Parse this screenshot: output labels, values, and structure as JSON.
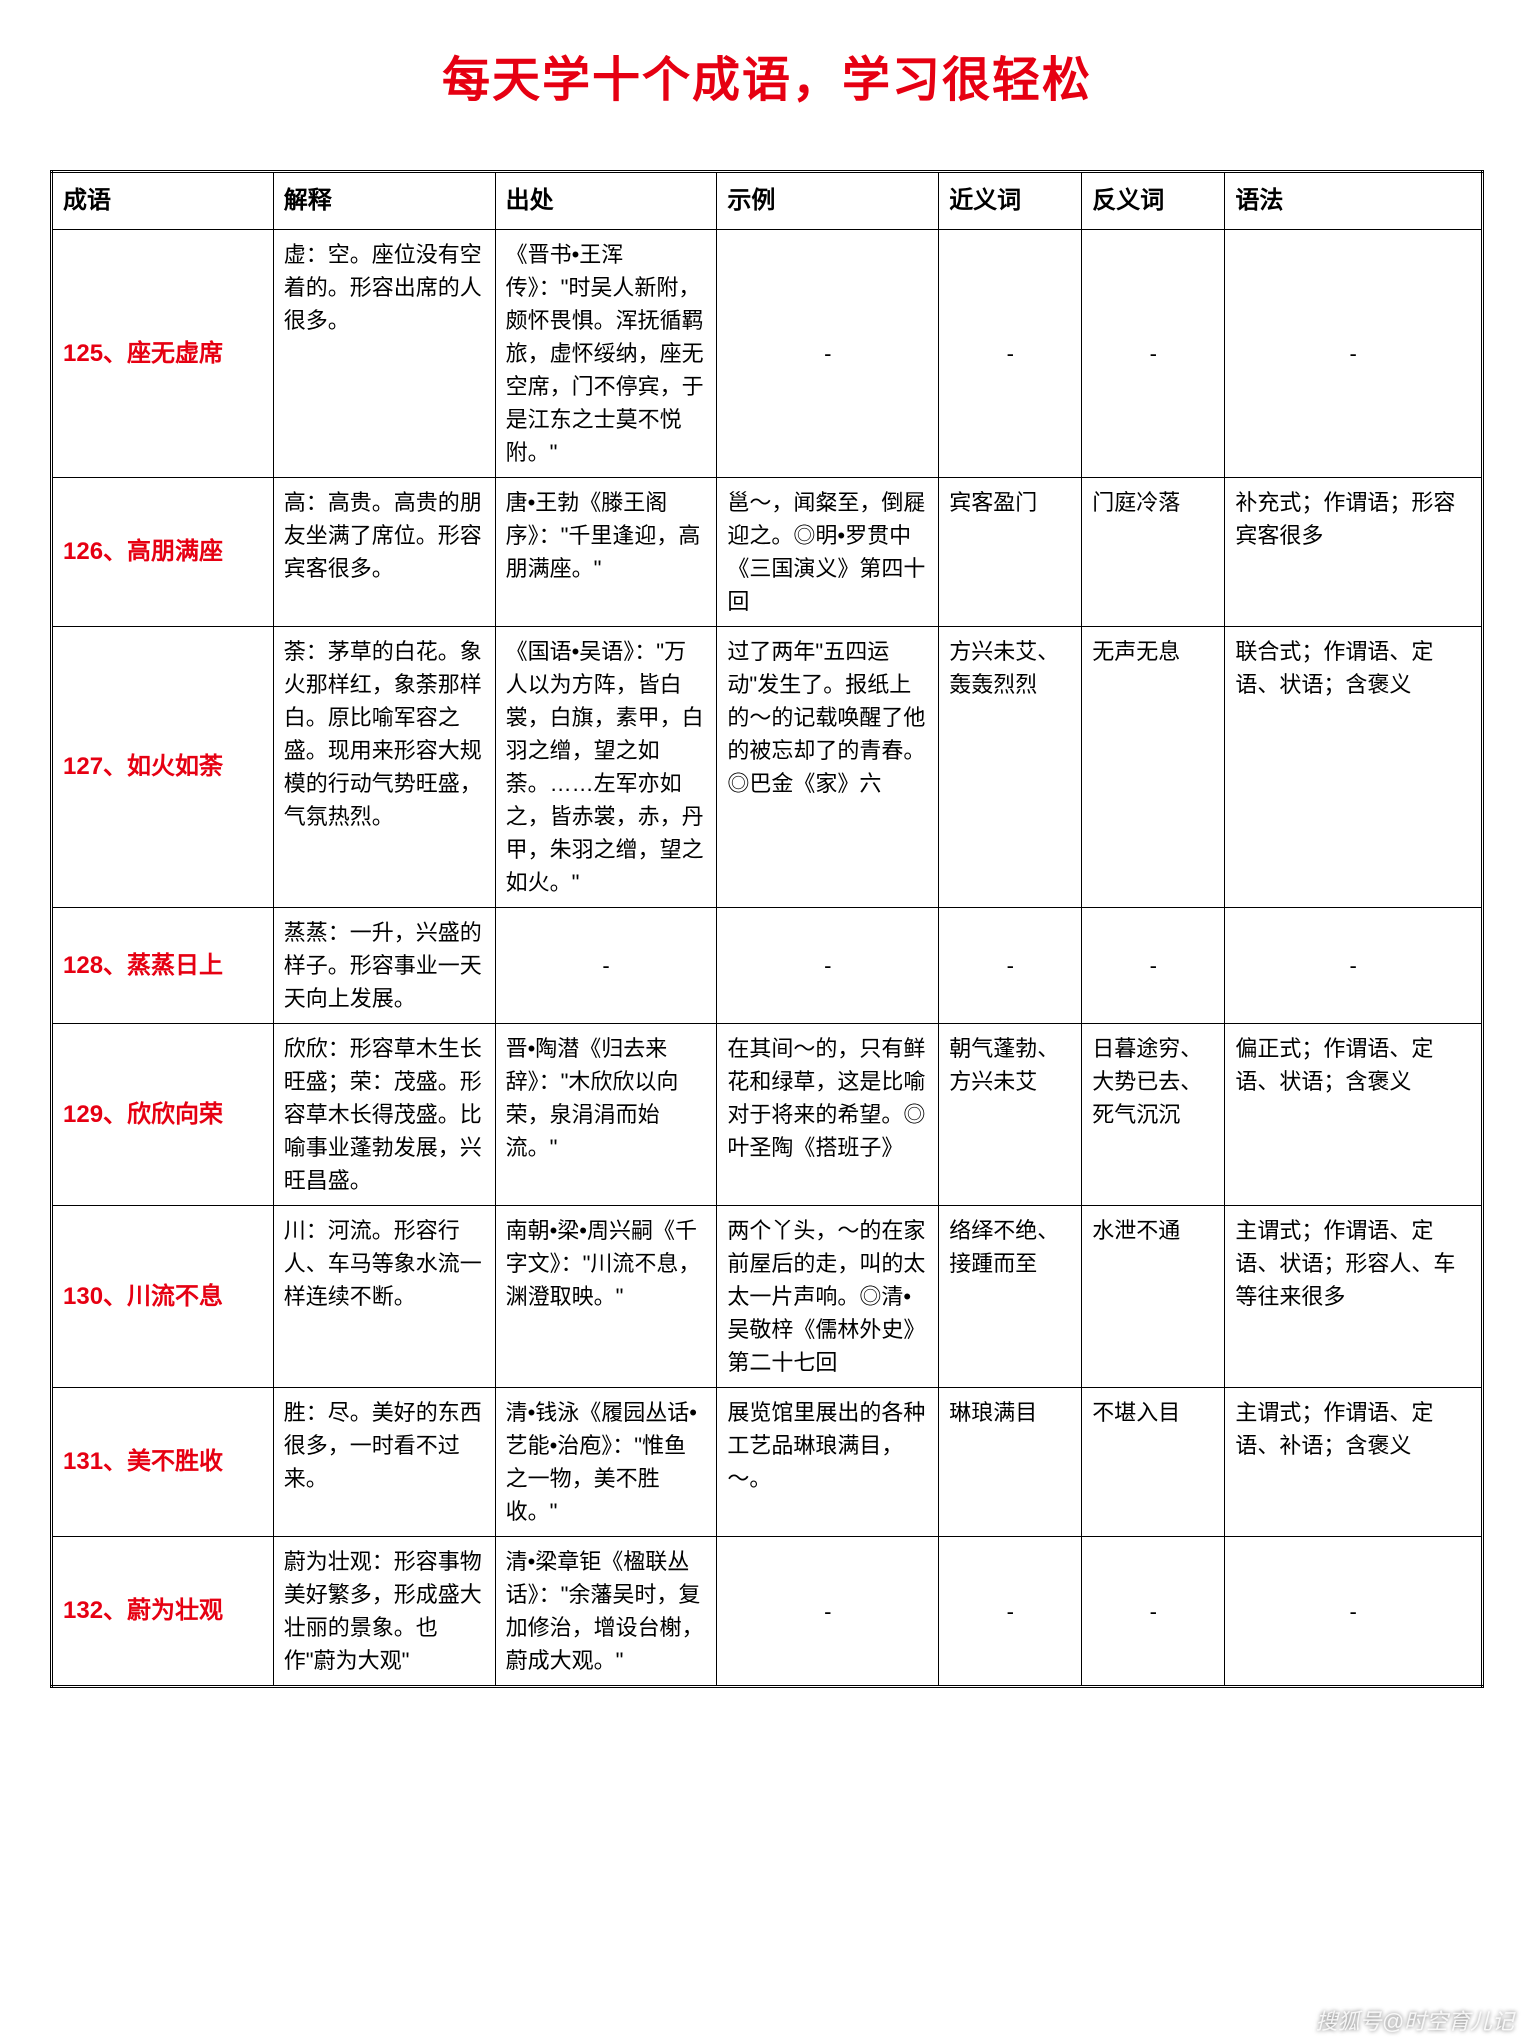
{
  "title": "每天学十个成语，学习很轻松",
  "watermark": "搜狐号@时空育儿记",
  "columns": [
    "成语",
    "解释",
    "出处",
    "示例",
    "近义词",
    "反义词",
    "语法"
  ],
  "styling": {
    "title_color": "#e60012",
    "title_fontsize": 48,
    "idiom_color": "#e60012",
    "body_fontsize": 22,
    "header_fontsize": 24,
    "border_color": "#000000",
    "background_color": "#ffffff",
    "col_widths_pct": [
      15.5,
      15.5,
      15.5,
      15.5,
      10,
      10,
      18
    ]
  },
  "rows": [
    {
      "idiom": "125、座无虚席",
      "explain": "虚：空。座位没有空着的。形容出席的人很多。",
      "source": "《晋书•王浑传》：\"时吴人新附，颇怀畏惧。浑抚循羁旅，虚怀绥纳，座无空席，门不停宾，于是江东之士莫不悦附。\"",
      "example": "-",
      "syn": "-",
      "ant": "-",
      "grammar": "-"
    },
    {
      "idiom": "126、高朋满座",
      "explain": "高：高贵。高贵的朋友坐满了席位。形容宾客很多。",
      "source": "唐•王勃《滕王阁序》：\"千里逢迎，高朋满座。\"",
      "example": "邕～，闻粲至，倒屣迎之。◎明•罗贯中《三国演义》第四十回",
      "syn": "宾客盈门",
      "ant": "门庭冷落",
      "grammar": "补充式；作谓语；形容宾客很多"
    },
    {
      "idiom": "127、如火如荼",
      "explain": "荼：茅草的白花。象火那样红，象荼那样白。原比喻军容之盛。现用来形容大规模的行动气势旺盛，气氛热烈。",
      "source": "《国语•吴语》：\"万人以为方阵，皆白裳，白旗，素甲，白羽之缯，望之如荼。……左军亦如之，皆赤裳，赤，丹甲，朱羽之缯，望之如火。\"",
      "example": "过了两年\"五四运动\"发生了。报纸上的～的记载唤醒了他的被忘却了的青春。◎巴金《家》六",
      "syn": "方兴未艾、轰轰烈烈",
      "ant": "无声无息",
      "grammar": "联合式；作谓语、定语、状语；含褒义"
    },
    {
      "idiom": "128、蒸蒸日上",
      "explain": "蒸蒸：一升，兴盛的样子。形容事业一天天向上发展。",
      "source": "-",
      "example": "-",
      "syn": "-",
      "ant": "-",
      "grammar": "-"
    },
    {
      "idiom": "129、欣欣向荣",
      "explain": "欣欣：形容草木生长旺盛；荣：茂盛。形容草木长得茂盛。比喻事业蓬勃发展，兴旺昌盛。",
      "source": "晋•陶潜《归去来辞》：\"木欣欣以向荣，泉涓涓而始流。\"",
      "example": "在其间～的，只有鲜花和绿草，这是比喻对于将来的希望。◎叶圣陶《搭班子》",
      "syn": "朝气蓬勃、方兴未艾",
      "ant": "日暮途穷、大势已去、死气沉沉",
      "grammar": "偏正式；作谓语、定语、状语；含褒义"
    },
    {
      "idiom": "130、川流不息",
      "explain": "川：河流。形容行人、车马等象水流一样连续不断。",
      "source": "南朝•梁•周兴嗣《千字文》：\"川流不息，渊澄取映。\"",
      "example": "两个丫头，～的在家前屋后的走，叫的太太一片声响。◎清•吴敬梓《儒林外史》第二十七回",
      "syn": "络绎不绝、接踵而至",
      "ant": "水泄不通",
      "grammar": "主谓式；作谓语、定语、状语；形容人、车等往来很多"
    },
    {
      "idiom": "131、美不胜收",
      "explain": "胜：尽。美好的东西很多，一时看不过来。",
      "source": "清•钱泳《履园丛话•艺能•治庖》：\"惟鱼之一物，美不胜收。\"",
      "example": "展览馆里展出的各种工艺品琳琅满目，～。",
      "syn": "琳琅满目",
      "ant": "不堪入目",
      "grammar": "主谓式；作谓语、定语、补语；含褒义"
    },
    {
      "idiom": "132、蔚为壮观",
      "explain": "蔚为壮观：形容事物美好繁多，形成盛大壮丽的景象。也作\"蔚为大观\"",
      "source": "清•梁章钜《楹联丛话》：\"余藩吴时，复加修治，增设台榭，蔚成大观。\"",
      "example": "-",
      "syn": "-",
      "ant": "-",
      "grammar": "-"
    }
  ]
}
